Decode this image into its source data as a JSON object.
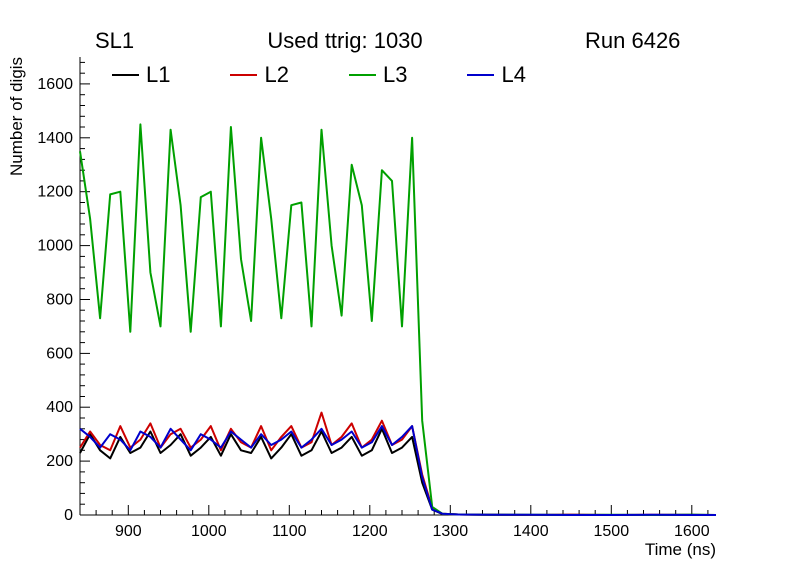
{
  "titles": {
    "left": "SL1",
    "center": "Used ttrig: 1030",
    "right": "Run 6426"
  },
  "axes": {
    "x_label": "Time (ns)",
    "y_label": "Number of digis",
    "x_ticks": [
      900,
      1000,
      1100,
      1200,
      1300,
      1400,
      1500,
      1600
    ],
    "y_ticks": [
      0,
      200,
      400,
      600,
      800,
      1000,
      1200,
      1400,
      1600
    ],
    "xlim": [
      840,
      1630
    ],
    "ylim": [
      0,
      1700
    ],
    "x_minor_step": 20,
    "y_minor_step": 40
  },
  "legend": {
    "entries": [
      {
        "label": "L1",
        "color": "#000000"
      },
      {
        "label": "L2",
        "color": "#cc0000"
      },
      {
        "label": "L3",
        "color": "#00a000"
      },
      {
        "label": "L4",
        "color": "#0000cc"
      }
    ]
  },
  "chart_data": {
    "type": "line",
    "title": "Used ttrig: 1030",
    "subtitle_left": "SL1",
    "subtitle_right": "Run 6426",
    "xlabel": "Time (ns)",
    "ylabel": "Number of digis",
    "xlim": [
      840,
      1630
    ],
    "ylim": [
      0,
      1700
    ],
    "grid": false,
    "legend_position": "top",
    "x": [
      840,
      852.5,
      865,
      877.5,
      890,
      902.5,
      915,
      927.5,
      940,
      952.5,
      965,
      977.5,
      990,
      1002.5,
      1015,
      1027.5,
      1040,
      1052.5,
      1065,
      1077.5,
      1090,
      1102.5,
      1115,
      1127.5,
      1140,
      1152.5,
      1165,
      1177.5,
      1190,
      1202.5,
      1215,
      1227.5,
      1240,
      1252.5,
      1265,
      1277.5,
      1290,
      1310,
      1350,
      1400,
      1450,
      1500,
      1550,
      1600,
      1630
    ],
    "series": [
      {
        "name": "L1",
        "color": "#000000",
        "values": [
          230,
          300,
          240,
          210,
          290,
          230,
          250,
          310,
          230,
          260,
          300,
          220,
          250,
          290,
          220,
          300,
          240,
          230,
          290,
          210,
          250,
          300,
          220,
          240,
          310,
          230,
          250,
          290,
          220,
          240,
          320,
          230,
          250,
          290,
          120,
          20,
          4,
          2,
          1,
          0,
          1,
          0,
          0,
          1,
          0
        ]
      },
      {
        "name": "L2",
        "color": "#cc0000",
        "values": [
          250,
          310,
          260,
          240,
          330,
          250,
          280,
          340,
          250,
          300,
          320,
          250,
          280,
          330,
          240,
          320,
          270,
          250,
          330,
          240,
          290,
          330,
          250,
          270,
          380,
          260,
          290,
          340,
          250,
          280,
          350,
          260,
          280,
          330,
          150,
          25,
          5,
          2,
          1,
          0,
          1,
          0,
          1,
          0,
          0
        ]
      },
      {
        "name": "L3",
        "color": "#00a000",
        "values": [
          1350,
          1100,
          730,
          1190,
          1200,
          680,
          1450,
          900,
          700,
          1430,
          1150,
          680,
          1180,
          1200,
          700,
          1440,
          950,
          720,
          1400,
          1100,
          730,
          1150,
          1160,
          700,
          1430,
          1000,
          740,
          1300,
          1150,
          720,
          1280,
          1240,
          700,
          1400,
          350,
          30,
          5,
          2,
          1,
          1,
          0,
          1,
          0,
          1,
          0
        ]
      },
      {
        "name": "L4",
        "color": "#0000cc",
        "values": [
          320,
          290,
          250,
          300,
          280,
          240,
          310,
          290,
          250,
          320,
          280,
          240,
          300,
          280,
          250,
          310,
          280,
          250,
          300,
          260,
          280,
          310,
          250,
          280,
          320,
          260,
          280,
          310,
          250,
          270,
          330,
          260,
          290,
          330,
          140,
          20,
          5,
          2,
          1,
          1,
          0,
          0,
          1,
          0,
          0
        ]
      }
    ]
  }
}
